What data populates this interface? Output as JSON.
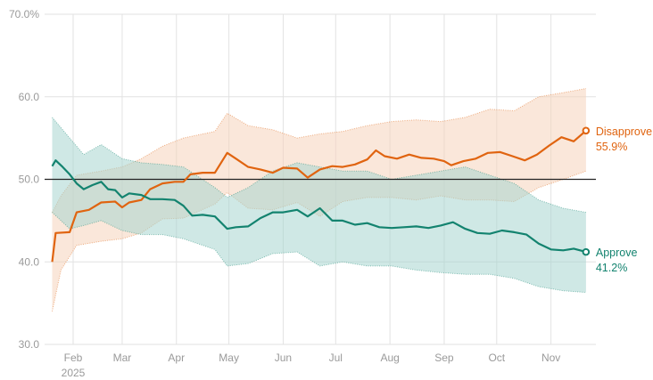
{
  "chart_data": {
    "type": "line",
    "title": "",
    "xlabel": "",
    "ylabel": "",
    "ylim": [
      30,
      70
    ],
    "y_ticks": [
      {
        "value": 70,
        "label": "70.0%"
      },
      {
        "value": 60,
        "label": "60.0"
      },
      {
        "value": 50,
        "label": "50.0"
      },
      {
        "value": 40,
        "label": "40.0"
      },
      {
        "value": 30,
        "label": "30.0"
      }
    ],
    "x_ticks": [
      {
        "date": "2025-02-01",
        "label": "Feb"
      },
      {
        "date": "2025-03-01",
        "label": "Mar"
      },
      {
        "date": "2025-04-01",
        "label": "Apr"
      },
      {
        "date": "2025-05-01",
        "label": "May"
      },
      {
        "date": "2025-06-01",
        "label": "Jun"
      },
      {
        "date": "2025-07-01",
        "label": "Jul"
      },
      {
        "date": "2025-08-01",
        "label": "Aug"
      },
      {
        "date": "2025-09-01",
        "label": "Sep"
      },
      {
        "date": "2025-10-01",
        "label": "Oct"
      },
      {
        "date": "2025-11-01",
        "label": "Nov"
      }
    ],
    "year_label": "2025",
    "reference_line": 50,
    "series": [
      {
        "name": "Disapprove",
        "end_label": "55.9%",
        "color": "#e06410",
        "band_color": "#f6d3bb",
        "points": [
          [
            "2025-01-20",
            40
          ],
          [
            "2025-01-22",
            43.5
          ],
          [
            "2025-01-30",
            43.6
          ],
          [
            "2025-02-03",
            46
          ],
          [
            "2025-02-10",
            46.3
          ],
          [
            "2025-02-17",
            47.2
          ],
          [
            "2025-02-25",
            47.3
          ],
          [
            "2025-03-01",
            46.6
          ],
          [
            "2025-03-05",
            47.2
          ],
          [
            "2025-03-12",
            47.5
          ],
          [
            "2025-03-17",
            48.8
          ],
          [
            "2025-03-24",
            49.5
          ],
          [
            "2025-03-31",
            49.7
          ],
          [
            "2025-04-05",
            49.7
          ],
          [
            "2025-04-09",
            50.6
          ],
          [
            "2025-04-16",
            50.8
          ],
          [
            "2025-04-23",
            50.8
          ],
          [
            "2025-04-30",
            53.2
          ],
          [
            "2025-05-05",
            52.5
          ],
          [
            "2025-05-12",
            51.5
          ],
          [
            "2025-05-19",
            51.2
          ],
          [
            "2025-05-26",
            50.8
          ],
          [
            "2025-06-01",
            51.4
          ],
          [
            "2025-06-09",
            51.3
          ],
          [
            "2025-06-15",
            50.2
          ],
          [
            "2025-06-22",
            51.2
          ],
          [
            "2025-06-29",
            51.6
          ],
          [
            "2025-07-05",
            51.5
          ],
          [
            "2025-07-12",
            51.8
          ],
          [
            "2025-07-19",
            52.4
          ],
          [
            "2025-07-24",
            53.5
          ],
          [
            "2025-07-29",
            52.8
          ],
          [
            "2025-08-05",
            52.5
          ],
          [
            "2025-08-12",
            53
          ],
          [
            "2025-08-19",
            52.6
          ],
          [
            "2025-08-26",
            52.5
          ],
          [
            "2025-09-01",
            52.2
          ],
          [
            "2025-09-05",
            51.7
          ],
          [
            "2025-09-12",
            52.2
          ],
          [
            "2025-09-19",
            52.5
          ],
          [
            "2025-09-26",
            53.2
          ],
          [
            "2025-10-03",
            53.3
          ],
          [
            "2025-10-10",
            52.8
          ],
          [
            "2025-10-17",
            52.3
          ],
          [
            "2025-10-24",
            53
          ],
          [
            "2025-10-31",
            54.1
          ],
          [
            "2025-11-07",
            55.1
          ],
          [
            "2025-11-14",
            54.6
          ],
          [
            "2025-11-21",
            55.9
          ]
        ],
        "band_upper": [
          [
            "2025-01-20",
            46
          ],
          [
            "2025-01-25",
            48
          ],
          [
            "2025-02-03",
            50.5
          ],
          [
            "2025-02-17",
            51
          ],
          [
            "2025-03-01",
            51.5
          ],
          [
            "2025-03-12",
            52.5
          ],
          [
            "2025-03-24",
            54
          ],
          [
            "2025-04-05",
            55
          ],
          [
            "2025-04-23",
            55.8
          ],
          [
            "2025-04-30",
            58
          ],
          [
            "2025-05-12",
            56.5
          ],
          [
            "2025-05-26",
            56
          ],
          [
            "2025-06-09",
            55
          ],
          [
            "2025-06-22",
            55.5
          ],
          [
            "2025-07-05",
            55.8
          ],
          [
            "2025-07-19",
            56.5
          ],
          [
            "2025-08-02",
            57
          ],
          [
            "2025-08-16",
            57.2
          ],
          [
            "2025-08-30",
            57
          ],
          [
            "2025-09-13",
            57.5
          ],
          [
            "2025-09-27",
            58.5
          ],
          [
            "2025-10-11",
            58.3
          ],
          [
            "2025-10-25",
            60
          ],
          [
            "2025-11-08",
            60.5
          ],
          [
            "2025-11-21",
            61
          ]
        ],
        "band_lower": [
          [
            "2025-01-20",
            34
          ],
          [
            "2025-01-25",
            39
          ],
          [
            "2025-02-03",
            42
          ],
          [
            "2025-02-17",
            42.5
          ],
          [
            "2025-03-01",
            42.8
          ],
          [
            "2025-03-12",
            43.5
          ],
          [
            "2025-03-24",
            45.2
          ],
          [
            "2025-04-05",
            45.3
          ],
          [
            "2025-04-23",
            47
          ],
          [
            "2025-04-30",
            48.4
          ],
          [
            "2025-05-12",
            46.5
          ],
          [
            "2025-05-26",
            46.3
          ],
          [
            "2025-06-09",
            47.2
          ],
          [
            "2025-06-22",
            45.5
          ],
          [
            "2025-07-05",
            47.3
          ],
          [
            "2025-07-19",
            47.8
          ],
          [
            "2025-08-02",
            47.8
          ],
          [
            "2025-08-16",
            47.5
          ],
          [
            "2025-08-30",
            48
          ],
          [
            "2025-09-13",
            47.5
          ],
          [
            "2025-09-27",
            47.5
          ],
          [
            "2025-10-11",
            47.3
          ],
          [
            "2025-10-25",
            49
          ],
          [
            "2025-11-08",
            50
          ],
          [
            "2025-11-21",
            51
          ]
        ]
      },
      {
        "name": "Approve",
        "end_label": "41.2%",
        "color": "#13836f",
        "band_color": "#a8d6cf",
        "points": [
          [
            "2025-01-20",
            51.6
          ],
          [
            "2025-01-22",
            52.3
          ],
          [
            "2025-01-26",
            51.5
          ],
          [
            "2025-01-30",
            50.6
          ],
          [
            "2025-02-03",
            49.5
          ],
          [
            "2025-02-07",
            48.8
          ],
          [
            "2025-02-12",
            49.3
          ],
          [
            "2025-02-17",
            49.7
          ],
          [
            "2025-02-21",
            48.8
          ],
          [
            "2025-02-25",
            48.7
          ],
          [
            "2025-03-01",
            47.8
          ],
          [
            "2025-03-05",
            48.3
          ],
          [
            "2025-03-12",
            48.1
          ],
          [
            "2025-03-17",
            47.6
          ],
          [
            "2025-03-24",
            47.6
          ],
          [
            "2025-03-31",
            47.5
          ],
          [
            "2025-04-05",
            46.8
          ],
          [
            "2025-04-10",
            45.6
          ],
          [
            "2025-04-16",
            45.7
          ],
          [
            "2025-04-23",
            45.5
          ],
          [
            "2025-04-30",
            44
          ],
          [
            "2025-05-05",
            44.2
          ],
          [
            "2025-05-12",
            44.3
          ],
          [
            "2025-05-19",
            45.3
          ],
          [
            "2025-05-26",
            46
          ],
          [
            "2025-06-01",
            46
          ],
          [
            "2025-06-09",
            46.3
          ],
          [
            "2025-06-15",
            45.5
          ],
          [
            "2025-06-22",
            46.5
          ],
          [
            "2025-06-29",
            45
          ],
          [
            "2025-07-05",
            45
          ],
          [
            "2025-07-12",
            44.5
          ],
          [
            "2025-07-19",
            44.7
          ],
          [
            "2025-07-26",
            44.2
          ],
          [
            "2025-08-02",
            44.1
          ],
          [
            "2025-08-09",
            44.2
          ],
          [
            "2025-08-16",
            44.3
          ],
          [
            "2025-08-23",
            44.1
          ],
          [
            "2025-08-30",
            44.4
          ],
          [
            "2025-09-06",
            44.8
          ],
          [
            "2025-09-13",
            44
          ],
          [
            "2025-09-20",
            43.5
          ],
          [
            "2025-09-27",
            43.4
          ],
          [
            "2025-10-04",
            43.8
          ],
          [
            "2025-10-11",
            43.6
          ],
          [
            "2025-10-18",
            43.3
          ],
          [
            "2025-10-25",
            42.2
          ],
          [
            "2025-11-01",
            41.5
          ],
          [
            "2025-11-08",
            41.4
          ],
          [
            "2025-11-14",
            41.6
          ],
          [
            "2025-11-21",
            41.2
          ]
        ],
        "band_upper": [
          [
            "2025-01-20",
            57.5
          ],
          [
            "2025-01-30",
            55
          ],
          [
            "2025-02-07",
            53
          ],
          [
            "2025-02-17",
            54.2
          ],
          [
            "2025-03-01",
            52.5
          ],
          [
            "2025-03-12",
            52
          ],
          [
            "2025-03-24",
            51.8
          ],
          [
            "2025-04-05",
            51.5
          ],
          [
            "2025-04-23",
            49
          ],
          [
            "2025-04-30",
            47.8
          ],
          [
            "2025-05-12",
            49
          ],
          [
            "2025-05-26",
            51
          ],
          [
            "2025-06-09",
            52
          ],
          [
            "2025-06-22",
            51.5
          ],
          [
            "2025-07-05",
            51
          ],
          [
            "2025-07-19",
            51
          ],
          [
            "2025-08-02",
            50
          ],
          [
            "2025-08-16",
            50.5
          ],
          [
            "2025-08-30",
            51
          ],
          [
            "2025-09-13",
            51.5
          ],
          [
            "2025-09-27",
            50.5
          ],
          [
            "2025-10-11",
            49.5
          ],
          [
            "2025-10-25",
            47.5
          ],
          [
            "2025-11-08",
            46.5
          ],
          [
            "2025-11-21",
            46
          ]
        ],
        "band_lower": [
          [
            "2025-01-20",
            46
          ],
          [
            "2025-01-30",
            44
          ],
          [
            "2025-02-07",
            44.4
          ],
          [
            "2025-02-17",
            45
          ],
          [
            "2025-03-01",
            43.8
          ],
          [
            "2025-03-12",
            43.3
          ],
          [
            "2025-03-24",
            43.3
          ],
          [
            "2025-04-05",
            42.8
          ],
          [
            "2025-04-23",
            41.5
          ],
          [
            "2025-04-30",
            39.5
          ],
          [
            "2025-05-12",
            39.8
          ],
          [
            "2025-05-26",
            41
          ],
          [
            "2025-06-09",
            41.2
          ],
          [
            "2025-06-22",
            39.5
          ],
          [
            "2025-07-05",
            40
          ],
          [
            "2025-07-19",
            39.5
          ],
          [
            "2025-08-02",
            39.5
          ],
          [
            "2025-08-16",
            39
          ],
          [
            "2025-08-30",
            38.7
          ],
          [
            "2025-09-13",
            38.5
          ],
          [
            "2025-09-27",
            38.5
          ],
          [
            "2025-10-11",
            38
          ],
          [
            "2025-10-25",
            37
          ],
          [
            "2025-11-08",
            36.5
          ],
          [
            "2025-11-21",
            36.3
          ]
        ]
      }
    ]
  }
}
